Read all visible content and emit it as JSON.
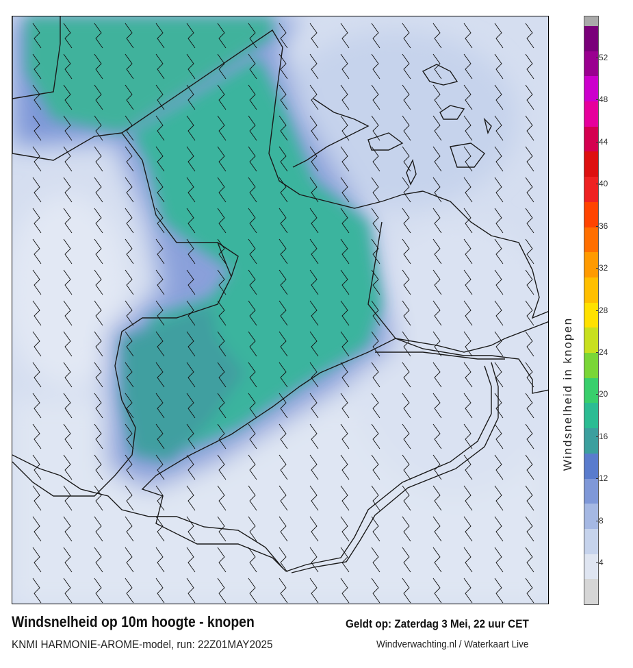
{
  "title": "Windsnelheid op 10m hoogte - knopen",
  "valid_time": "Geldt op: Zaterdag 3 Mei, 22 uur CET",
  "model_run": "KNMI HARMONIE-AROME-model, run: 22Z01MAY2025",
  "source": "Windverwachting.nl / Waterkaart Live",
  "colorbar": {
    "label": "Windsnelheid in knopen",
    "ticks": [
      "4",
      "8",
      "12",
      "16",
      "20",
      "24",
      "28",
      "32",
      "36",
      "40",
      "44",
      "48",
      "52"
    ],
    "colors": [
      "#d6d6d6",
      "#dfe5f1",
      "#c6d3ec",
      "#a5b8e3",
      "#7f98d8",
      "#5a7ccd",
      "#3c9f9e",
      "#2cbc93",
      "#39cf6c",
      "#7ad637",
      "#c8e01f",
      "#ffe100",
      "#ffbf00",
      "#ff9a00",
      "#ff6f00",
      "#ff4400",
      "#ee2222",
      "#dd1010",
      "#d40050",
      "#e6009c",
      "#cc00cc",
      "#9a0090",
      "#7a007a",
      "#aaaaaa"
    ]
  },
  "map": {
    "region": "IJsselmeer / Markermeer",
    "wind_colors": {
      "calm": "#dfe6f3",
      "moderate": "#b9c8e8",
      "fresh": "#8aa4dc",
      "strong": "#4aa8a0",
      "very_strong": "#3cc09a"
    }
  }
}
